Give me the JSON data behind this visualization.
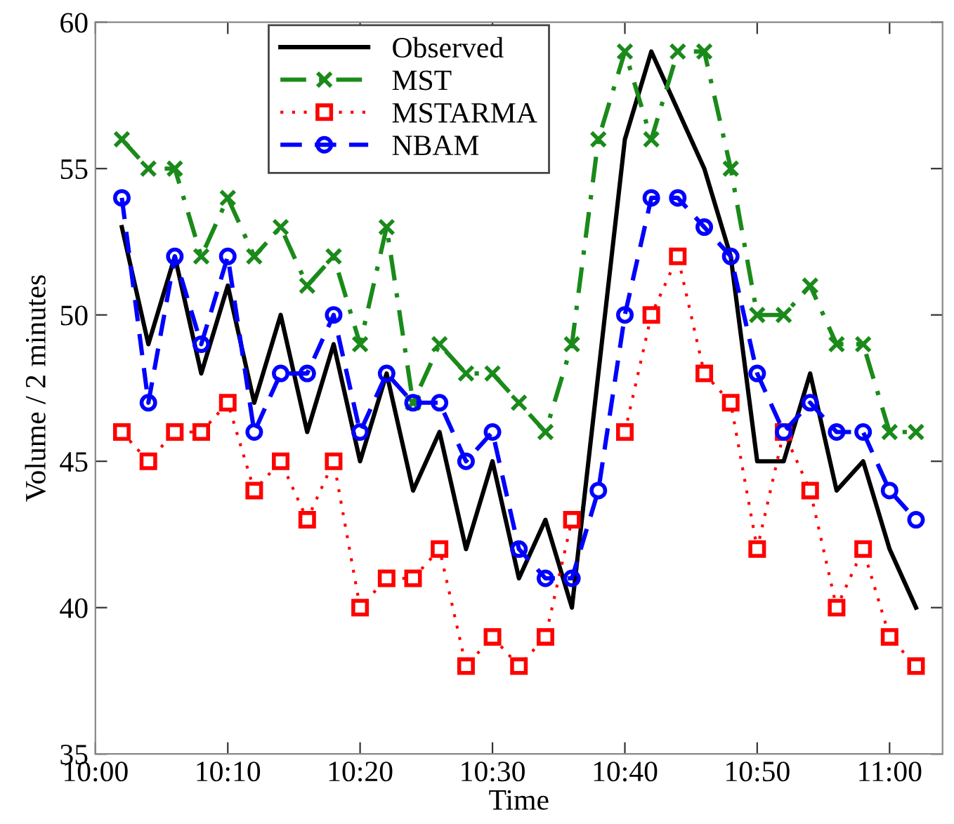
{
  "chart_data": {
    "type": "line",
    "xlabel": "Time",
    "ylabel": "Volume / 2 minutes",
    "x": [
      10.0333,
      10.0667,
      10.1,
      10.1333,
      10.1667,
      10.2,
      10.2333,
      10.2667,
      10.3,
      10.3333,
      10.3667,
      10.4,
      10.4333,
      10.4667,
      10.5,
      10.5333,
      10.5667,
      10.6,
      10.6333,
      10.6667,
      10.7,
      10.7333,
      10.7667,
      10.8,
      10.8333,
      10.8667,
      10.9,
      10.9333,
      10.9667,
      11.0,
      11.0333
    ],
    "series": [
      {
        "name": "Observed",
        "color": "#000000",
        "line_style": "solid",
        "marker": "none",
        "values": [
          53,
          49,
          52,
          48,
          51,
          47,
          50,
          46,
          49,
          45,
          48,
          44,
          46,
          42,
          45,
          41,
          43,
          40,
          48,
          56,
          59,
          57,
          55,
          52,
          45,
          45,
          48,
          44,
          45,
          42,
          40
        ]
      },
      {
        "name": "MST",
        "color": "#1a8a1a",
        "line_style": "dashdot",
        "marker": "cross",
        "values": [
          56,
          55,
          55,
          52,
          54,
          52,
          53,
          51,
          52,
          49,
          53,
          47,
          49,
          48,
          48,
          47,
          46,
          49,
          56,
          59,
          56,
          59,
          59,
          55,
          50,
          50,
          51,
          49,
          49,
          46,
          46
        ]
      },
      {
        "name": "MSTARMA",
        "color": "#ff0000",
        "line_style": "dotted",
        "marker": "square",
        "values": [
          46,
          45,
          46,
          46,
          47,
          44,
          45,
          43,
          45,
          40,
          41,
          41,
          42,
          38,
          39,
          38,
          39,
          43,
          null,
          46,
          50,
          52,
          48,
          47,
          42,
          46,
          44,
          40,
          42,
          39,
          38
        ]
      },
      {
        "name": "NBAM",
        "color": "#0000ff",
        "line_style": "dashed",
        "marker": "circle",
        "values": [
          54,
          47,
          52,
          49,
          52,
          46,
          48,
          48,
          50,
          46,
          48,
          47,
          47,
          45,
          46,
          42,
          41,
          41,
          44,
          50,
          54,
          54,
          53,
          52,
          48,
          46,
          47,
          46,
          46,
          44,
          43
        ]
      }
    ],
    "xlim": [
      10.0,
      11.0667
    ],
    "xticks": [
      {
        "value": 10.0,
        "label": "10:00"
      },
      {
        "value": 10.1667,
        "label": "10:10"
      },
      {
        "value": 10.3333,
        "label": "10:20"
      },
      {
        "value": 10.5,
        "label": "10:30"
      },
      {
        "value": 10.6667,
        "label": "10:40"
      },
      {
        "value": 10.8333,
        "label": "10:50"
      },
      {
        "value": 11.0,
        "label": "11:00"
      }
    ],
    "ylim": [
      35,
      60
    ],
    "yticks": [
      35,
      40,
      45,
      50,
      55,
      60
    ],
    "legend": "top center"
  }
}
